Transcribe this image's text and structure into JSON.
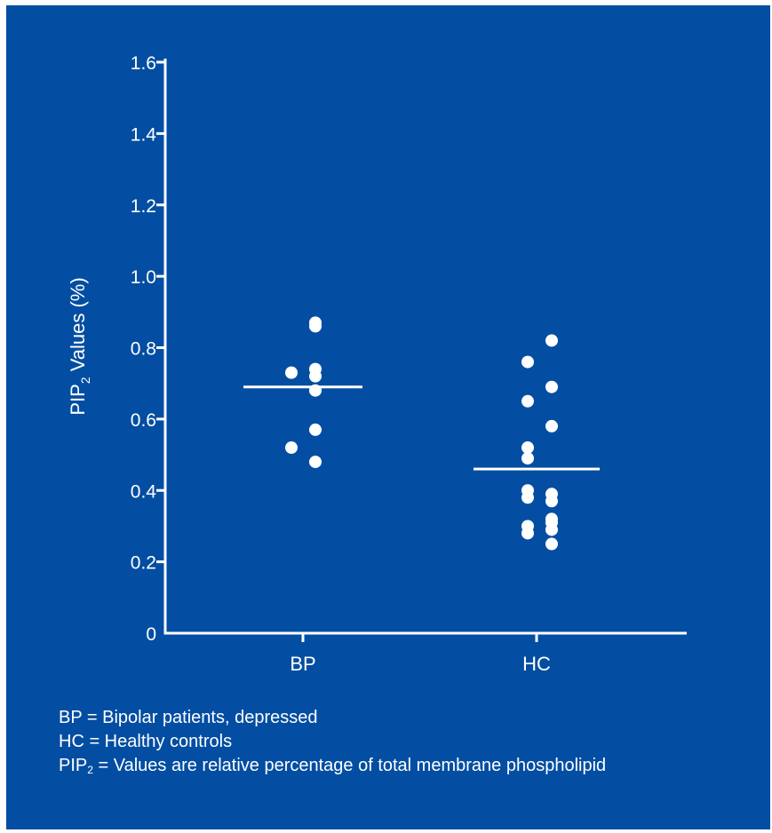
{
  "colors": {
    "background": "#034ea2",
    "foreground": "#ffffff"
  },
  "chart_data": {
    "type": "scatter",
    "ylabel_main": "PIP",
    "ylabel_sub": "2",
    "ylabel_rest": " Values (%)",
    "ylim": [
      0,
      1.6
    ],
    "yticks": [
      "0",
      "0.2",
      "0.4",
      "0.6",
      "0.8",
      "1.0",
      "1.2",
      "1.4",
      "1.6"
    ],
    "categories": [
      "BP",
      "HC"
    ],
    "grid": false,
    "series": [
      {
        "category": "BP",
        "points": [
          {
            "offset": 0,
            "y": 0.87
          },
          {
            "offset": 0,
            "y": 0.86
          },
          {
            "offset": -1,
            "y": 0.73
          },
          {
            "offset": 0,
            "y": 0.74
          },
          {
            "offset": 0,
            "y": 0.72
          },
          {
            "offset": 0,
            "y": 0.68
          },
          {
            "offset": 0,
            "y": 0.57
          },
          {
            "offset": -1,
            "y": 0.52
          },
          {
            "offset": 0,
            "y": 0.48
          }
        ],
        "mean": 0.69
      },
      {
        "category": "HC",
        "points": [
          {
            "offset": 1,
            "y": 0.82
          },
          {
            "offset": 0,
            "y": 0.76
          },
          {
            "offset": 1,
            "y": 0.69
          },
          {
            "offset": 0,
            "y": 0.65
          },
          {
            "offset": 1,
            "y": 0.58
          },
          {
            "offset": 0,
            "y": 0.52
          },
          {
            "offset": 0,
            "y": 0.49
          },
          {
            "offset": 0,
            "y": 0.4
          },
          {
            "offset": 1,
            "y": 0.39
          },
          {
            "offset": 0,
            "y": 0.38
          },
          {
            "offset": 1,
            "y": 0.37
          },
          {
            "offset": 1,
            "y": 0.32
          },
          {
            "offset": 1,
            "y": 0.31
          },
          {
            "offset": 0,
            "y": 0.3
          },
          {
            "offset": 1,
            "y": 0.29
          },
          {
            "offset": 0,
            "y": 0.28
          },
          {
            "offset": 1,
            "y": 0.25
          }
        ],
        "mean": 0.46
      }
    ]
  },
  "legend": {
    "line1": "BP = Bipolar patients, depressed",
    "line2": "HC = Healthy controls",
    "line3_main": "PIP",
    "line3_sub": "2",
    "line3_rest": " = Values are relative percentage of total membrane phospholipid"
  }
}
